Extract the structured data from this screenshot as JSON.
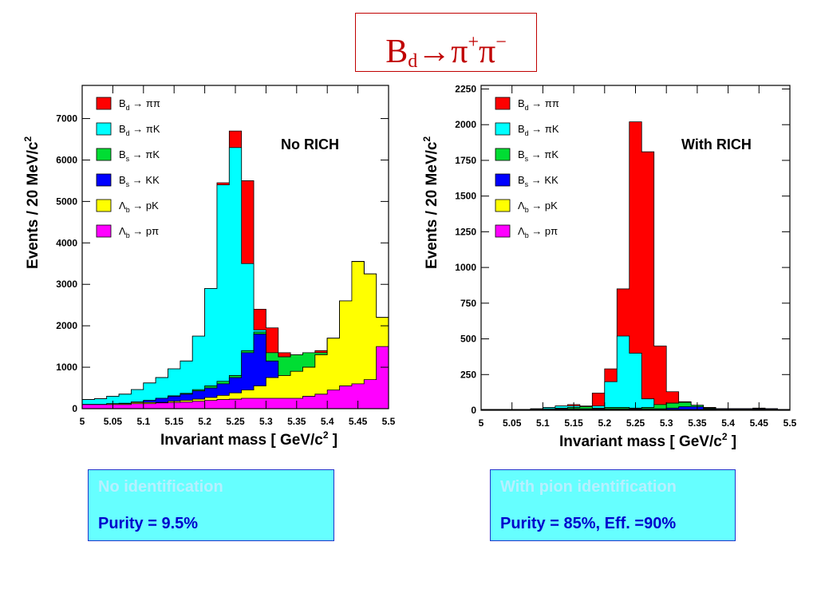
{
  "title": {
    "main": "B",
    "sub": "d",
    "arrow": "→",
    "pi1": "π",
    "sup1": "+",
    "pi2": "π",
    "sup2": "−"
  },
  "colors": {
    "Bd_pipi": "#ff0000",
    "Bd_piK": "#00ffff",
    "Bs_piK": "#00dd33",
    "Bs_KK": "#0000ff",
    "Lb_pK": "#ffff00",
    "Lb_ppi": "#ff00ff"
  },
  "legend": [
    {
      "key": "Bd_pipi",
      "p": "B",
      "s": "d",
      "r": "→ ππ"
    },
    {
      "key": "Bd_piK",
      "p": "B",
      "s": "d",
      "r": "→ πK"
    },
    {
      "key": "Bs_piK",
      "p": "B",
      "s": "s",
      "r": "→ πK"
    },
    {
      "key": "Bs_KK",
      "p": "B",
      "s": "s",
      "r": "→ KK"
    },
    {
      "key": "Lb_pK",
      "p": "Λ",
      "s": "b",
      "r": "→ pK"
    },
    {
      "key": "Lb_ppi",
      "p": "Λ",
      "s": "b",
      "r": "→ pπ"
    }
  ],
  "chart_data": [
    {
      "type": "area",
      "label": "No RICH",
      "xlabel": "Invariant mass",
      "xunit": "GeV/c",
      "ylabel": "Events / 20 MeV/c",
      "xlim": [
        5.0,
        5.5
      ],
      "ylim": [
        0,
        7800
      ],
      "xticks": [
        "5",
        "5.05",
        "5.1",
        "5.15",
        "5.2",
        "5.25",
        "5.3",
        "5.35",
        "5.4",
        "5.45",
        "5.5"
      ],
      "yticks": [
        0,
        1000,
        2000,
        3000,
        4000,
        5000,
        6000,
        7000
      ],
      "bins": [
        5.0,
        5.02,
        5.04,
        5.06,
        5.08,
        5.1,
        5.12,
        5.14,
        5.16,
        5.18,
        5.2,
        5.22,
        5.24,
        5.26,
        5.28,
        5.3,
        5.32,
        5.34,
        5.36,
        5.38,
        5.4,
        5.42,
        5.44,
        5.46,
        5.48,
        5.5
      ],
      "stack_order": [
        "Lb_ppi",
        "Lb_pK",
        "Bs_KK",
        "Bs_piK",
        "Bd_piK",
        "Bd_pipi"
      ],
      "totals": {
        "Lb_ppi": [
          100,
          100,
          100,
          100,
          120,
          120,
          140,
          150,
          160,
          180,
          200,
          220,
          230,
          250,
          250,
          250,
          250,
          250,
          300,
          350,
          450,
          550,
          600,
          700,
          1500
        ],
        "Lb_pK": [
          100,
          100,
          120,
          120,
          150,
          150,
          150,
          180,
          200,
          230,
          270,
          320,
          380,
          450,
          550,
          750,
          800,
          900,
          1000,
          1300,
          1700,
          2600,
          3550,
          3250,
          2200
        ],
        "Bs_KK": [
          100,
          100,
          120,
          130,
          160,
          200,
          250,
          300,
          350,
          430,
          500,
          600,
          750,
          1350,
          1800,
          1150,
          800,
          900,
          1000,
          1300,
          1700,
          2600,
          3550,
          3250,
          2200
        ],
        "Bs_piK": [
          100,
          100,
          120,
          130,
          160,
          200,
          250,
          310,
          370,
          460,
          550,
          660,
          800,
          1400,
          1850,
          1350,
          1250,
          1300,
          1350,
          1350,
          1700,
          2600,
          3550,
          3250,
          2200
        ],
        "Bd_piK": [
          220,
          240,
          300,
          350,
          460,
          620,
          750,
          960,
          1150,
          1750,
          2900,
          5400,
          6300,
          3500,
          1900,
          1350,
          1250,
          1300,
          1350,
          1350,
          1700,
          2600,
          3550,
          3250,
          2200
        ],
        "Bd_pipi": [
          220,
          240,
          300,
          350,
          460,
          620,
          750,
          960,
          1150,
          1750,
          2900,
          5450,
          6700,
          5500,
          2400,
          1950,
          1350,
          1300,
          1350,
          1400,
          1700,
          2600,
          3550,
          3250,
          2200
        ]
      },
      "info_header": "No identification",
      "info_text": "Purity = 9.5%"
    },
    {
      "type": "area",
      "label": "With RICH",
      "xlabel": "Invariant mass",
      "xunit": "GeV/c",
      "ylabel": "Events / 20 MeV/c",
      "xlim": [
        5.0,
        5.5
      ],
      "ylim": [
        0,
        2275
      ],
      "xticks": [
        "5",
        "5.05",
        "5.1",
        "5.15",
        "5.2",
        "5.25",
        "5.3",
        "5.35",
        "5.4",
        "5.45",
        "5.5"
      ],
      "yticks": [
        0,
        250,
        500,
        750,
        1000,
        1250,
        1500,
        1750,
        2000,
        2250
      ],
      "bins": [
        5.0,
        5.02,
        5.04,
        5.06,
        5.08,
        5.1,
        5.12,
        5.14,
        5.16,
        5.18,
        5.2,
        5.22,
        5.24,
        5.26,
        5.28,
        5.3,
        5.32,
        5.34,
        5.36,
        5.38,
        5.4,
        5.42,
        5.44,
        5.46,
        5.48,
        5.5
      ],
      "stack_order": [
        "Lb_ppi",
        "Lb_pK",
        "Bs_KK",
        "Bs_piK",
        "Bd_piK",
        "Bd_pipi"
      ],
      "totals": {
        "Lb_ppi": [
          5,
          5,
          5,
          5,
          5,
          5,
          5,
          5,
          5,
          5,
          5,
          5,
          5,
          5,
          5,
          5,
          5,
          5,
          5,
          5,
          5,
          5,
          5,
          5,
          5
        ],
        "Lb_pK": [
          5,
          5,
          5,
          5,
          5,
          5,
          5,
          5,
          5,
          5,
          5,
          5,
          5,
          5,
          5,
          5,
          5,
          5,
          5,
          5,
          5,
          5,
          5,
          5,
          5
        ],
        "Bs_KK": [
          5,
          5,
          5,
          5,
          5,
          5,
          10,
          10,
          10,
          10,
          10,
          10,
          10,
          10,
          10,
          15,
          25,
          25,
          10,
          10,
          10,
          10,
          10,
          10,
          5
        ],
        "Bs_piK": [
          5,
          5,
          5,
          5,
          5,
          10,
          15,
          20,
          25,
          15,
          20,
          20,
          15,
          20,
          40,
          50,
          55,
          35,
          15,
          10,
          10,
          10,
          10,
          10,
          5
        ],
        "Bd_piK": [
          5,
          5,
          5,
          5,
          10,
          20,
          30,
          30,
          20,
          30,
          200,
          520,
          400,
          80,
          40,
          50,
          55,
          35,
          15,
          10,
          10,
          10,
          10,
          10,
          5
        ],
        "Bd_pipi": [
          5,
          5,
          5,
          5,
          10,
          20,
          30,
          40,
          30,
          120,
          290,
          850,
          2020,
          1810,
          450,
          130,
          60,
          35,
          20,
          10,
          10,
          10,
          15,
          10,
          5
        ]
      },
      "info_header": "With pion identification",
      "info_text": "Purity = 85%, Eff. =90%"
    }
  ]
}
